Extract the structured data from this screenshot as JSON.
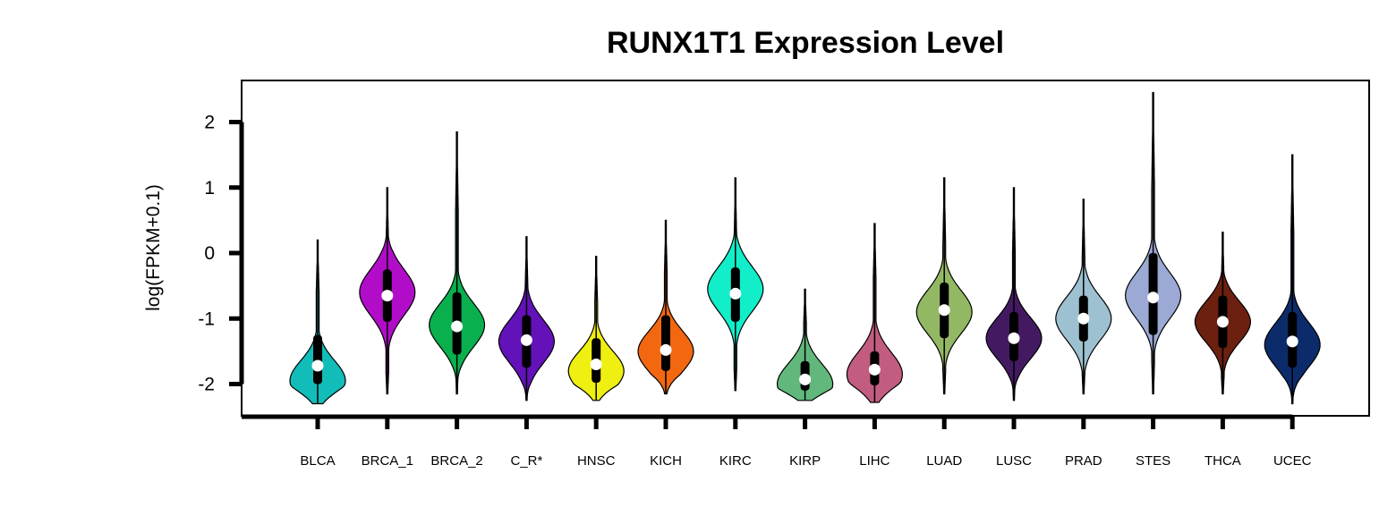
{
  "chart_data": {
    "type": "violin",
    "title": "RUNX1T1 Expression Level",
    "xlabel": "",
    "ylabel": "log(FPKM+0.1)",
    "ylim": [
      -2.5,
      2.6
    ],
    "yticks": [
      2,
      1,
      0,
      -1,
      -2
    ],
    "ytick_labels": [
      "2",
      "1",
      "0",
      "-1",
      "-2"
    ],
    "grid": false,
    "legend": "none",
    "categories": [
      "BLCA",
      "BRCA_1",
      "BRCA_2",
      "C_R*",
      "HNSC",
      "KICH",
      "KIRC",
      "KIRP",
      "LIHC",
      "LUAD",
      "LUSC",
      "PRAD",
      "STES",
      "THCA",
      "UCEC"
    ],
    "series": [
      {
        "category": "BLCA",
        "color": "#12BCB8",
        "min": -2.3,
        "max": 0.2,
        "q1": -2.0,
        "median": -1.72,
        "q3": -1.25,
        "mode": -1.95,
        "spread": 0.8
      },
      {
        "category": "BRCA_1",
        "color": "#B10DC9",
        "min": -2.15,
        "max": 1.0,
        "q1": -1.05,
        "median": -0.65,
        "q3": -0.25,
        "mode": -0.6,
        "spread": 0.9
      },
      {
        "category": "BRCA_2",
        "color": "#0AB04E",
        "min": -2.15,
        "max": 1.85,
        "q1": -1.55,
        "median": -1.12,
        "q3": -0.6,
        "mode": -1.1,
        "spread": 0.85
      },
      {
        "category": "C_R*",
        "color": "#6212B8",
        "min": -2.25,
        "max": 0.25,
        "q1": -1.75,
        "median": -1.33,
        "q3": -0.95,
        "mode": -1.35,
        "spread": 0.85
      },
      {
        "category": "HNSC",
        "color": "#EFEF12",
        "min": -2.25,
        "max": -0.05,
        "q1": -1.98,
        "median": -1.7,
        "q3": -1.3,
        "mode": -1.8,
        "spread": 0.78
      },
      {
        "category": "KICH",
        "color": "#F26710",
        "min": -2.15,
        "max": 0.5,
        "q1": -1.8,
        "median": -1.48,
        "q3": -0.95,
        "mode": -1.5,
        "spread": 0.8
      },
      {
        "category": "KIRC",
        "color": "#12EEC9",
        "min": -2.1,
        "max": 1.15,
        "q1": -1.05,
        "median": -0.62,
        "q3": -0.22,
        "mode": -0.55,
        "spread": 0.88
      },
      {
        "category": "KIRP",
        "color": "#62B87C",
        "min": -2.25,
        "max": -0.55,
        "q1": -2.1,
        "median": -1.93,
        "q3": -1.65,
        "mode": -2.0,
        "spread": 0.8
      },
      {
        "category": "LIHC",
        "color": "#C25C80",
        "min": -2.28,
        "max": 0.45,
        "q1": -2.02,
        "median": -1.78,
        "q3": -1.5,
        "mode": -1.85,
        "spread": 0.85
      },
      {
        "category": "LUAD",
        "color": "#93B864",
        "min": -2.15,
        "max": 1.15,
        "q1": -1.3,
        "median": -0.87,
        "q3": -0.45,
        "mode": -0.9,
        "spread": 0.85
      },
      {
        "category": "LUSC",
        "color": "#431A62",
        "min": -2.25,
        "max": 1.0,
        "q1": -1.65,
        "median": -1.3,
        "q3": -0.9,
        "mode": -1.3,
        "spread": 0.8
      },
      {
        "category": "PRAD",
        "color": "#9DC1D0",
        "min": -2.15,
        "max": 0.82,
        "q1": -1.35,
        "median": -1.0,
        "q3": -0.65,
        "mode": -1.0,
        "spread": 0.85
      },
      {
        "category": "STES",
        "color": "#9BA9D4",
        "min": -2.15,
        "max": 2.45,
        "q1": -1.25,
        "median": -0.68,
        "q3": 0.0,
        "mode": -0.65,
        "spread": 0.9
      },
      {
        "category": "THCA",
        "color": "#6B2010",
        "min": -2.15,
        "max": 0.32,
        "q1": -1.45,
        "median": -1.05,
        "q3": -0.65,
        "mode": -1.05,
        "spread": 0.8
      },
      {
        "category": "UCEC",
        "color": "#0C2B6B",
        "min": -2.3,
        "max": 1.5,
        "q1": -1.75,
        "median": -1.35,
        "q3": -0.9,
        "mode": -1.4,
        "spread": 0.85
      }
    ]
  }
}
